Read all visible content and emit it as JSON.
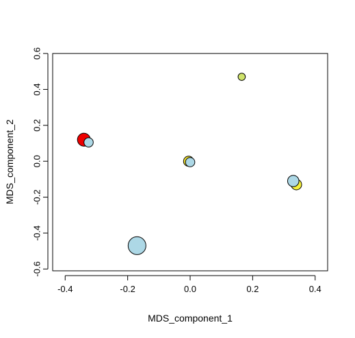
{
  "chart_data": {
    "type": "scatter",
    "xlabel": "MDS_component_1",
    "ylabel": "MDS_component_2",
    "xlim": [
      -0.44,
      0.44
    ],
    "ylim": [
      -0.61,
      0.6
    ],
    "x_ticks": [
      -0.4,
      -0.2,
      0.0,
      0.2,
      0.4
    ],
    "x_tick_labels": [
      "-0.4",
      "-0.2",
      "0.0",
      "0.2",
      "0.4"
    ],
    "y_ticks": [
      -0.6,
      -0.4,
      -0.2,
      0.0,
      0.2,
      0.4,
      0.6
    ],
    "y_tick_labels": [
      "-0.6",
      "-0.4",
      "-0.2",
      "0.0",
      "0.2",
      "0.4",
      "0.6"
    ],
    "grid": false,
    "box": true,
    "points": [
      {
        "x": -0.34,
        "y": 0.12,
        "color": "#ee0000",
        "size": 3.2
      },
      {
        "x": -0.325,
        "y": 0.105,
        "color": "#add8e6",
        "size": 2.3
      },
      {
        "x": 0.165,
        "y": 0.47,
        "color": "#cfe36b",
        "size": 1.8
      },
      {
        "x": -0.005,
        "y": 0.0,
        "color": "#f2e22e",
        "size": 2.5
      },
      {
        "x": 0.0,
        "y": -0.005,
        "color": "#add8e6",
        "size": 2.3
      },
      {
        "x": 0.34,
        "y": -0.13,
        "color": "#f6f03a",
        "size": 2.6
      },
      {
        "x": 0.33,
        "y": -0.11,
        "color": "#add8e6",
        "size": 2.8
      },
      {
        "x": -0.17,
        "y": -0.47,
        "color": "#add8e6",
        "size": 4.4
      }
    ]
  }
}
